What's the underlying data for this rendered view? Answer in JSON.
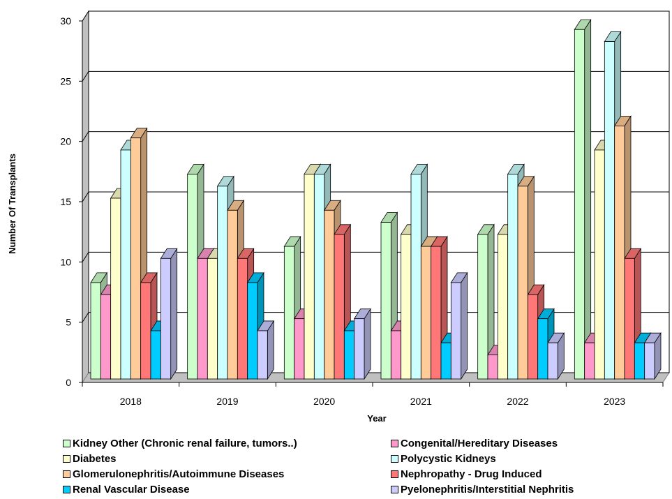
{
  "chart_data": {
    "type": "bar",
    "title": "",
    "xlabel": "Year",
    "ylabel": "Number Of Transplants",
    "ylim": [
      0,
      30
    ],
    "yticks": [
      0,
      5,
      10,
      15,
      20,
      25,
      30
    ],
    "grid": true,
    "legend_position": "bottom",
    "three_d": true,
    "categories": [
      "2018",
      "2019",
      "2020",
      "2021",
      "2022",
      "2023"
    ],
    "series": [
      {
        "name": "Kidney Other (Chronic renal failure, tumors..)",
        "color": "#ccffcc",
        "values": [
          8,
          17,
          11,
          13,
          12,
          29
        ]
      },
      {
        "name": "Congenital/Hereditary Diseases",
        "color": "#ff99cc",
        "values": [
          7,
          10,
          5,
          4,
          2,
          3
        ]
      },
      {
        "name": "Diabetes",
        "color": "#ffffcc",
        "values": [
          15,
          10,
          17,
          12,
          12,
          19
        ]
      },
      {
        "name": "Polycystic Kidneys",
        "color": "#ccffff",
        "values": [
          19,
          16,
          17,
          17,
          17,
          28
        ]
      },
      {
        "name": "Glomerulonephritis/Autoimmune Diseases",
        "color": "#ffcc99",
        "values": [
          20,
          14,
          14,
          11,
          16,
          21
        ]
      },
      {
        "name": "Nephropathy - Drug Induced",
        "color": "#ff7777",
        "values": [
          8,
          10,
          12,
          11,
          7,
          10
        ]
      },
      {
        "name": "Renal Vascular Disease",
        "color": "#00ccff",
        "values": [
          4,
          8,
          4,
          3,
          5,
          3
        ]
      },
      {
        "name": "Pyelonephritis/Interstitial Nephritis",
        "color": "#ccccff",
        "values": [
          10,
          4,
          5,
          8,
          3,
          3
        ]
      }
    ]
  }
}
